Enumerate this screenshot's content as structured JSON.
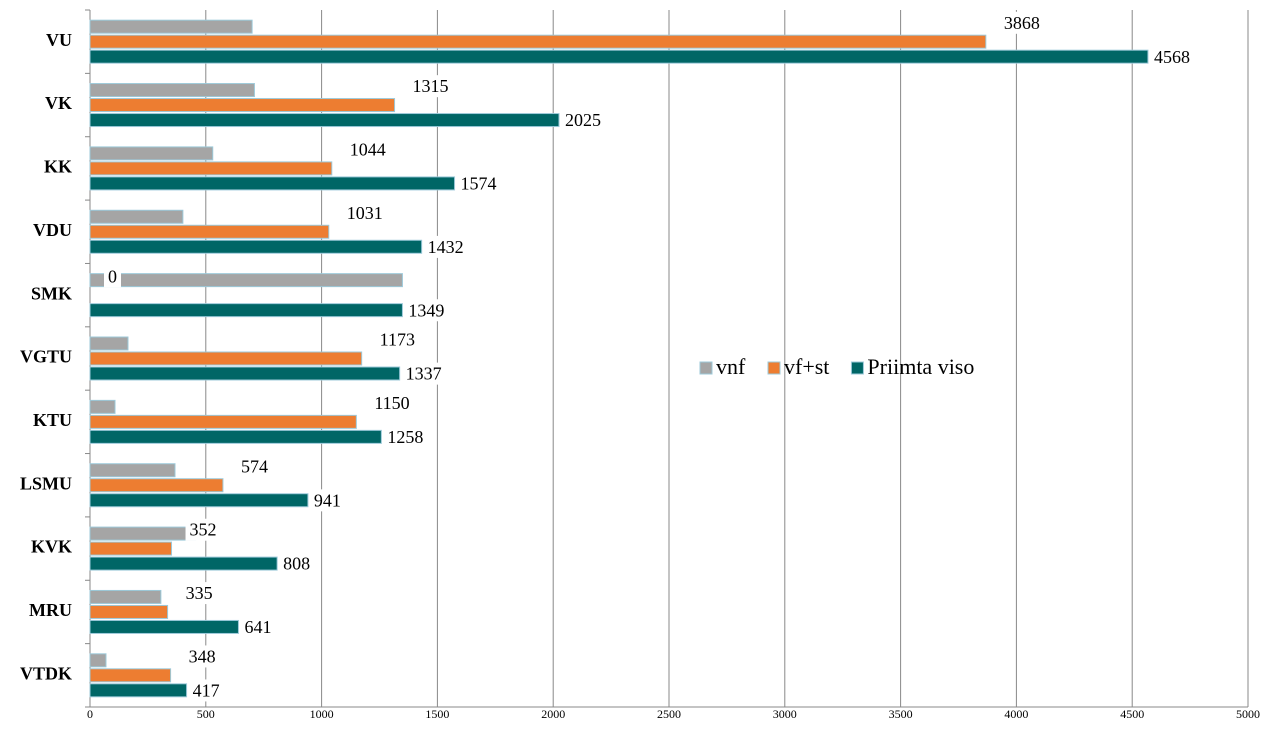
{
  "chart_data": {
    "type": "hbar",
    "categories": [
      "VU",
      "VK",
      "KK",
      "VDU",
      "SMK",
      "VGTU",
      "KTU",
      "LSMU",
      "KVK",
      "MRU",
      "VTDK"
    ],
    "series": [
      {
        "name": "vnf",
        "color": "#a5a5a5",
        "values": [
          700,
          710,
          530,
          401,
          1349,
          164,
          108,
          367,
          456,
          306,
          69
        ],
        "labels": false
      },
      {
        "name": "vf+st",
        "color": "#ed7d31",
        "values": [
          3868,
          1315,
          1044,
          1031,
          0,
          1173,
          1150,
          574,
          352,
          335,
          348
        ],
        "labels": true
      },
      {
        "name": "Priimta viso",
        "color": "#006666",
        "values": [
          4568,
          2025,
          1574,
          1432,
          1349,
          1337,
          1258,
          941,
          808,
          641,
          417
        ],
        "labels": true
      }
    ],
    "xlim": [
      0,
      5000
    ],
    "xticks": [
      0,
      500,
      1000,
      1500,
      2000,
      2500,
      3000,
      3500,
      4000,
      4500,
      5000
    ],
    "grid": true,
    "legend": "center"
  }
}
